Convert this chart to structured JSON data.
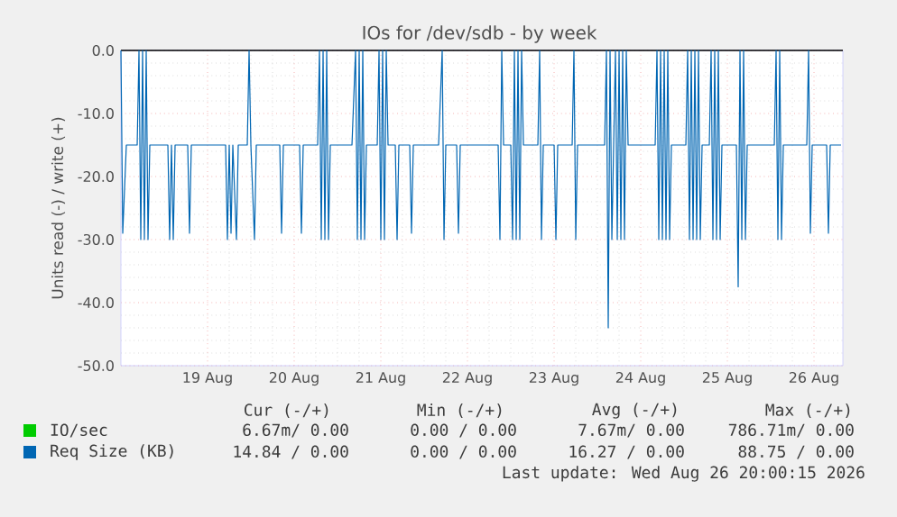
{
  "chart_data": {
    "type": "line",
    "title": "IOs for /dev/sdb - by week",
    "ylabel": "Units read (-) / write (+)",
    "xlim": [
      "2026-08-18T00:00",
      "2026-08-26T08:00"
    ],
    "xticks": [
      {
        "value": "2026-08-19",
        "label": "19 Aug"
      },
      {
        "value": "2026-08-20",
        "label": "20 Aug"
      },
      {
        "value": "2026-08-21",
        "label": "21 Aug"
      },
      {
        "value": "2026-08-22",
        "label": "22 Aug"
      },
      {
        "value": "2026-08-23",
        "label": "23 Aug"
      },
      {
        "value": "2026-08-24",
        "label": "24 Aug"
      },
      {
        "value": "2026-08-25",
        "label": "25 Aug"
      },
      {
        "value": "2026-08-26",
        "label": "26 Aug"
      }
    ],
    "ylim": [
      -50,
      0
    ],
    "yticks": [
      {
        "value": -50,
        "label": "-50.0"
      },
      {
        "value": -40,
        "label": "-40.0"
      },
      {
        "value": -30,
        "label": "-30.0"
      },
      {
        "value": -20,
        "label": "-20.0"
      },
      {
        "value": -10,
        "label": "-10.0"
      },
      {
        "value": 0,
        "label": "0.0"
      }
    ],
    "grid": true,
    "legend": "bottom",
    "marker": "none",
    "line_style": "solid",
    "ref_lines": [
      {
        "axis": "y",
        "value": 0,
        "color": "#000000"
      }
    ],
    "series": [
      {
        "name": "IO/sec",
        "color": "#00cc00"
      },
      {
        "name": "Req Size (KB)",
        "color": "#0066b3",
        "x": [
          "2026-08-18T00:00",
          "2026-08-18T00:30",
          "2026-08-18T01:30",
          "2026-08-18T04:30",
          "2026-08-18T05:00",
          "2026-08-18T05:30",
          "2026-08-18T06:00",
          "2026-08-18T06:30",
          "2026-08-18T07:00",
          "2026-08-18T07:30",
          "2026-08-18T08:00",
          "2026-08-18T13:00",
          "2026-08-18T13:30",
          "2026-08-18T14:00",
          "2026-08-18T14:30",
          "2026-08-18T15:00",
          "2026-08-18T18:30",
          "2026-08-18T19:00",
          "2026-08-18T19:30",
          "2026-08-19T05:00",
          "2026-08-19T05:30",
          "2026-08-19T06:00",
          "2026-08-19T06:30",
          "2026-08-19T07:00",
          "2026-08-19T08:00",
          "2026-08-19T08:30",
          "2026-08-19T11:00",
          "2026-08-19T11:30",
          "2026-08-19T12:00",
          "2026-08-19T13:00",
          "2026-08-19T13:30",
          "2026-08-19T20:00",
          "2026-08-19T20:30",
          "2026-08-19T21:00",
          "2026-08-20T01:30",
          "2026-08-20T02:00",
          "2026-08-20T02:30",
          "2026-08-20T06:30",
          "2026-08-20T07:00",
          "2026-08-20T07:30",
          "2026-08-20T08:00",
          "2026-08-20T08:30",
          "2026-08-20T09:00",
          "2026-08-20T09:30",
          "2026-08-20T10:00",
          "2026-08-20T16:00",
          "2026-08-20T17:00",
          "2026-08-20T17:30",
          "2026-08-20T18:00",
          "2026-08-20T18:30",
          "2026-08-20T19:00",
          "2026-08-20T19:30",
          "2026-08-20T20:00",
          "2026-08-20T23:00",
          "2026-08-20T23:30",
          "2026-08-21T00:00",
          "2026-08-21T00:30",
          "2026-08-21T01:00",
          "2026-08-21T01:30",
          "2026-08-21T02:00",
          "2026-08-21T04:00",
          "2026-08-21T04:30",
          "2026-08-21T05:00",
          "2026-08-21T08:00",
          "2026-08-21T08:30",
          "2026-08-21T09:00",
          "2026-08-21T16:00",
          "2026-08-21T17:00",
          "2026-08-21T17:30",
          "2026-08-21T18:00",
          "2026-08-21T21:00",
          "2026-08-21T21:30",
          "2026-08-21T22:00",
          "2026-08-22T08:30",
          "2026-08-22T09:00",
          "2026-08-22T09:30",
          "2026-08-22T10:00",
          "2026-08-22T12:00",
          "2026-08-22T12:30",
          "2026-08-22T13:00",
          "2026-08-22T13:30",
          "2026-08-22T14:00",
          "2026-08-22T14:30",
          "2026-08-22T15:00",
          "2026-08-22T15:30",
          "2026-08-22T19:30",
          "2026-08-22T20:00",
          "2026-08-22T20:30",
          "2026-08-22T21:00",
          "2026-08-23T00:00",
          "2026-08-23T00:30",
          "2026-08-23T01:00",
          "2026-08-23T05:00",
          "2026-08-23T05:30",
          "2026-08-23T06:00",
          "2026-08-23T06:30",
          "2026-08-23T14:00",
          "2026-08-23T14:30",
          "2026-08-23T15:00",
          "2026-08-23T15:30",
          "2026-08-23T16:00",
          "2026-08-23T17:00",
          "2026-08-23T17:30",
          "2026-08-23T18:00",
          "2026-08-23T18:30",
          "2026-08-23T19:00",
          "2026-08-23T19:30",
          "2026-08-23T20:00",
          "2026-08-23T20:30",
          "2026-08-24T04:00",
          "2026-08-24T04:30",
          "2026-08-24T05:00",
          "2026-08-24T05:30",
          "2026-08-24T06:00",
          "2026-08-24T06:30",
          "2026-08-24T07:00",
          "2026-08-24T07:30",
          "2026-08-24T08:00",
          "2026-08-24T08:30",
          "2026-08-24T12:30",
          "2026-08-24T13:00",
          "2026-08-24T13:30",
          "2026-08-24T14:00",
          "2026-08-24T14:30",
          "2026-08-24T15:00",
          "2026-08-24T15:30",
          "2026-08-24T16:00",
          "2026-08-24T16:30",
          "2026-08-24T17:00",
          "2026-08-24T19:00",
          "2026-08-24T19:30",
          "2026-08-24T20:00",
          "2026-08-24T20:30",
          "2026-08-24T21:00",
          "2026-08-24T21:30",
          "2026-08-24T22:00",
          "2026-08-24T22:30",
          "2026-08-25T02:30",
          "2026-08-25T03:00",
          "2026-08-25T03:30",
          "2026-08-25T04:00",
          "2026-08-25T04:30",
          "2026-08-25T05:00",
          "2026-08-25T05:30",
          "2026-08-25T13:00",
          "2026-08-25T13:30",
          "2026-08-25T14:00",
          "2026-08-25T14:30",
          "2026-08-25T15:00",
          "2026-08-25T15:30",
          "2026-08-25T22:00",
          "2026-08-25T22:30",
          "2026-08-25T23:00",
          "2026-08-25T23:30",
          "2026-08-26T03:30",
          "2026-08-26T04:00",
          "2026-08-26T04:30",
          "2026-08-26T07:30"
        ],
        "values": [
          0,
          -29,
          -15,
          -15,
          0,
          -30,
          0,
          -30,
          0,
          -30,
          -15,
          -15,
          -30,
          -15,
          -30,
          -15,
          -15,
          -29,
          -15,
          -15,
          -30,
          -15,
          -29,
          -15,
          -30,
          -15,
          -15,
          0,
          -15,
          -30,
          -15,
          -15,
          -29,
          -15,
          -15,
          -29,
          -15,
          -15,
          0,
          -30,
          0,
          -30,
          0,
          -30,
          -15,
          -15,
          0,
          -30,
          0,
          -30,
          0,
          -30,
          -15,
          -15,
          0,
          -30,
          0,
          -30,
          0,
          -15,
          -15,
          -30,
          -15,
          -15,
          -29,
          -15,
          -15,
          0,
          -30,
          -15,
          -15,
          -29,
          -15,
          -15,
          -30,
          0,
          -15,
          -15,
          -30,
          0,
          -30,
          0,
          -30,
          0,
          -15,
          -15,
          0,
          -30,
          -15,
          -15,
          -30,
          -15,
          -15,
          0,
          -30,
          -15,
          -15,
          0,
          -44,
          0,
          -30,
          0,
          -30,
          0,
          -30,
          0,
          -30,
          0,
          -15,
          -15,
          0,
          -30,
          0,
          -30,
          0,
          -30,
          0,
          -30,
          -15,
          -15,
          0,
          -30,
          0,
          -30,
          0,
          -30,
          0,
          -30,
          -15,
          -15,
          0,
          -30,
          0,
          -30,
          0,
          -30,
          -15,
          -15,
          -37.5,
          0,
          -30,
          0,
          -30,
          -15,
          -15,
          0,
          -30,
          0,
          -30,
          -15,
          -15,
          0,
          -29,
          -15,
          -15,
          -29,
          -15,
          -15
        ]
      }
    ],
    "annotations": [
      "Cur (-/+)",
      "Min (-/+)",
      "Avg (-/+)",
      "Max (-/+)",
      "6.67m/ 0.00",
      "0.00 / 0.00",
      "7.67m/ 0.00",
      "786.71m/ 0.00",
      "14.84 / 0.00",
      "0.00 / 0.00",
      "16.27 / 0.00",
      "88.75 / 0.00",
      "Last update: Wed Aug 26 20:00:15 2026"
    ]
  }
}
